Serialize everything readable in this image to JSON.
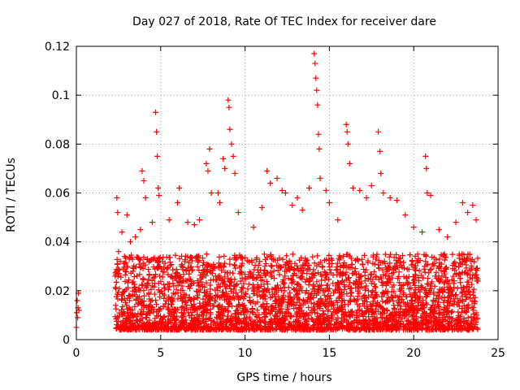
{
  "chart_data": {
    "type": "scatter",
    "title": "Day 027 of 2018, Rate Of TEC Index for receiver dare",
    "xlabel": "GPS time / hours",
    "ylabel": "ROTI / TECUs",
    "xlim": [
      0,
      25
    ],
    "ylim": [
      0,
      0.12
    ],
    "xticks": [
      0,
      5,
      10,
      15,
      20,
      25
    ],
    "yticks": [
      0,
      0.02,
      0.04,
      0.06,
      0.08,
      0.1,
      0.12
    ],
    "ytick_labels": [
      "0",
      "0.02",
      "0.04",
      "0.06",
      "0.08",
      "0.1",
      "0.12"
    ],
    "grid": true,
    "legend": "none",
    "marker": "+",
    "color": "#ff0000",
    "points": [
      [
        0.0,
        0.005
      ],
      [
        0.02,
        0.011
      ],
      [
        0.05,
        0.016
      ],
      [
        0.08,
        0.009
      ],
      [
        0.1,
        0.013
      ],
      [
        0.12,
        0.019
      ],
      [
        0.15,
        0.012
      ],
      [
        2.4,
        0.058
      ],
      [
        2.45,
        0.052
      ],
      [
        2.5,
        0.036
      ],
      [
        2.6,
        0.032
      ],
      [
        2.7,
        0.044
      ],
      [
        3.0,
        0.051
      ],
      [
        3.2,
        0.04
      ],
      [
        3.5,
        0.042
      ],
      [
        3.8,
        0.045
      ],
      [
        3.9,
        0.069
      ],
      [
        4.0,
        0.065
      ],
      [
        4.1,
        0.058
      ],
      [
        4.5,
        0.048
      ],
      [
        4.7,
        0.093
      ],
      [
        4.75,
        0.085
      ],
      [
        4.8,
        0.075
      ],
      [
        4.85,
        0.062
      ],
      [
        4.9,
        0.059
      ],
      [
        5.5,
        0.049
      ],
      [
        6.0,
        0.056
      ],
      [
        6.1,
        0.062
      ],
      [
        6.6,
        0.048
      ],
      [
        7.0,
        0.047
      ],
      [
        7.3,
        0.049
      ],
      [
        7.7,
        0.072
      ],
      [
        7.8,
        0.069
      ],
      [
        7.9,
        0.078
      ],
      [
        8.0,
        0.06
      ],
      [
        8.4,
        0.06
      ],
      [
        8.5,
        0.056
      ],
      [
        8.7,
        0.074
      ],
      [
        8.8,
        0.07
      ],
      [
        9.0,
        0.098
      ],
      [
        9.05,
        0.095
      ],
      [
        9.1,
        0.086
      ],
      [
        9.2,
        0.08
      ],
      [
        9.3,
        0.075
      ],
      [
        9.4,
        0.068
      ],
      [
        9.6,
        0.052
      ],
      [
        10.5,
        0.046
      ],
      [
        11.0,
        0.054
      ],
      [
        11.3,
        0.069
      ],
      [
        11.5,
        0.064
      ],
      [
        11.9,
        0.066
      ],
      [
        12.2,
        0.061
      ],
      [
        12.4,
        0.06
      ],
      [
        12.8,
        0.055
      ],
      [
        13.1,
        0.058
      ],
      [
        13.4,
        0.053
      ],
      [
        13.8,
        0.062
      ],
      [
        14.1,
        0.117
      ],
      [
        14.15,
        0.113
      ],
      [
        14.2,
        0.107
      ],
      [
        14.25,
        0.102
      ],
      [
        14.3,
        0.096
      ],
      [
        14.35,
        0.084
      ],
      [
        14.4,
        0.078
      ],
      [
        14.45,
        0.066
      ],
      [
        14.8,
        0.061
      ],
      [
        15.0,
        0.056
      ],
      [
        15.5,
        0.049
      ],
      [
        16.0,
        0.088
      ],
      [
        16.05,
        0.085
      ],
      [
        16.1,
        0.08
      ],
      [
        16.2,
        0.072
      ],
      [
        16.4,
        0.062
      ],
      [
        16.8,
        0.061
      ],
      [
        17.2,
        0.058
      ],
      [
        17.5,
        0.063
      ],
      [
        17.9,
        0.085
      ],
      [
        18.0,
        0.077
      ],
      [
        18.05,
        0.068
      ],
      [
        18.2,
        0.06
      ],
      [
        18.6,
        0.058
      ],
      [
        19.0,
        0.057
      ],
      [
        19.5,
        0.051
      ],
      [
        20.0,
        0.046
      ],
      [
        20.5,
        0.044
      ],
      [
        20.7,
        0.075
      ],
      [
        20.75,
        0.07
      ],
      [
        20.8,
        0.06
      ],
      [
        21.0,
        0.059
      ],
      [
        21.5,
        0.045
      ],
      [
        22.0,
        0.042
      ],
      [
        22.5,
        0.048
      ],
      [
        22.9,
        0.056
      ],
      [
        23.2,
        0.052
      ],
      [
        23.5,
        0.055
      ],
      [
        23.7,
        0.049
      ]
    ],
    "dense_band": {
      "x_range": [
        2.3,
        23.8
      ],
      "y_range": [
        0.004,
        0.035
      ],
      "note": "dense cluster of points"
    }
  }
}
